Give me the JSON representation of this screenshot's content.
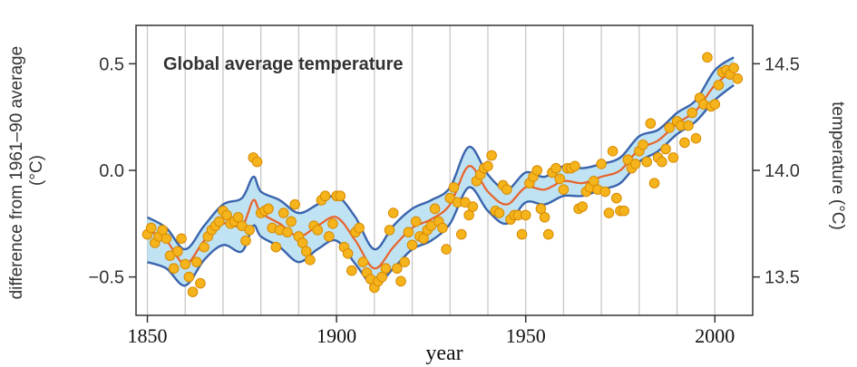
{
  "chart_data": {
    "type": "line",
    "title": "Global average temperature",
    "xlabel": "year",
    "ylabel_left": "difference from 1961–90 average (°C)",
    "ylabel_right": "temperature (°C)",
    "xlim": [
      1847,
      2010
    ],
    "ylim": [
      -0.68,
      0.68
    ],
    "x_ticks": [
      1850,
      1900,
      1950,
      2000
    ],
    "y_ticks_left": [
      -0.5,
      0.0,
      0.5
    ],
    "y_tick_labels_left": [
      "−0.5",
      "0.0",
      "0.5"
    ],
    "y_ticks_right": [
      13.5,
      14.0,
      14.5
    ],
    "y_tick_labels_right": [
      "13.5",
      "14.0",
      "14.5"
    ],
    "right_axis_offset": 14.0,
    "grid": "vertical",
    "colors": {
      "band_fill": "#bfe3f3",
      "band_edge": "#3a64ad",
      "smooth_line": "#e8622a",
      "point_fill": "#f6b41c",
      "point_edge": "#d68a00",
      "grid": "#c8c8c8"
    },
    "series": [
      {
        "x": [
          1850,
          1855,
          1860,
          1865,
          1870,
          1875,
          1878,
          1880,
          1885,
          1890,
          1895,
          1900,
          1905,
          1910,
          1915,
          1920,
          1925,
          1930,
          1935,
          1940,
          1945,
          1950,
          1955,
          1960,
          1965,
          1970,
          1975,
          1980,
          1985,
          1990,
          1995,
          2000,
          2005
        ],
        "values": [
          -0.28,
          -0.33,
          -0.44,
          -0.33,
          -0.25,
          -0.26,
          -0.14,
          -0.2,
          -0.25,
          -0.31,
          -0.26,
          -0.22,
          -0.33,
          -0.46,
          -0.36,
          -0.27,
          -0.23,
          -0.16,
          0.02,
          -0.1,
          -0.16,
          -0.08,
          -0.09,
          -0.05,
          -0.06,
          -0.03,
          0.0,
          0.1,
          0.14,
          0.22,
          0.28,
          0.4,
          0.47
        ]
      },
      {
        "x": [
          1850,
          1855,
          1860,
          1865,
          1870,
          1875,
          1878,
          1880,
          1885,
          1890,
          1895,
          1900,
          1905,
          1910,
          1915,
          1920,
          1925,
          1930,
          1935,
          1940,
          1945,
          1950,
          1955,
          1960,
          1965,
          1970,
          1975,
          1980,
          1985,
          1990,
          1995,
          2000,
          2005
        ],
        "values": [
          -0.22,
          -0.27,
          -0.37,
          -0.26,
          -0.16,
          -0.13,
          -0.03,
          -0.1,
          -0.14,
          -0.2,
          -0.16,
          -0.12,
          -0.22,
          -0.37,
          -0.26,
          -0.18,
          -0.14,
          -0.08,
          0.11,
          -0.02,
          -0.09,
          -0.01,
          -0.03,
          0.02,
          0.01,
          0.03,
          0.06,
          0.16,
          0.19,
          0.27,
          0.33,
          0.47,
          0.53
        ]
      },
      {
        "x": [
          1850,
          1855,
          1860,
          1865,
          1870,
          1875,
          1878,
          1880,
          1885,
          1890,
          1895,
          1900,
          1905,
          1910,
          1915,
          1920,
          1925,
          1930,
          1935,
          1940,
          1945,
          1950,
          1955,
          1960,
          1965,
          1970,
          1975,
          1980,
          1985,
          1990,
          1995,
          2000,
          2005
        ],
        "values": [
          -0.43,
          -0.46,
          -0.54,
          -0.42,
          -0.35,
          -0.38,
          -0.26,
          -0.31,
          -0.36,
          -0.43,
          -0.37,
          -0.33,
          -0.44,
          -0.54,
          -0.46,
          -0.37,
          -0.33,
          -0.25,
          -0.08,
          -0.19,
          -0.25,
          -0.15,
          -0.16,
          -0.12,
          -0.12,
          -0.09,
          -0.06,
          0.04,
          0.09,
          0.17,
          0.23,
          0.33,
          0.4
        ]
      },
      {
        "x": [
          1850,
          1851,
          1852,
          1853,
          1854,
          1855,
          1856,
          1857,
          1858,
          1859,
          1860,
          1861,
          1862,
          1863,
          1864,
          1865,
          1866,
          1867,
          1868,
          1869,
          1870,
          1871,
          1872,
          1873,
          1874,
          1875,
          1876,
          1877,
          1878,
          1879,
          1880,
          1881,
          1882,
          1883,
          1884,
          1885,
          1886,
          1887,
          1888,
          1889,
          1890,
          1891,
          1892,
          1893,
          1894,
          1895,
          1896,
          1897,
          1898,
          1899,
          1900,
          1901,
          1902,
          1903,
          1904,
          1905,
          1906,
          1907,
          1908,
          1909,
          1910,
          1911,
          1912,
          1913,
          1914,
          1915,
          1916,
          1917,
          1918,
          1919,
          1920,
          1921,
          1922,
          1923,
          1924,
          1925,
          1926,
          1927,
          1928,
          1929,
          1930,
          1931,
          1932,
          1933,
          1934,
          1935,
          1936,
          1937,
          1938,
          1939,
          1940,
          1941,
          1942,
          1943,
          1944,
          1945,
          1946,
          1947,
          1948,
          1949,
          1950,
          1951,
          1952,
          1953,
          1954,
          1955,
          1956,
          1957,
          1958,
          1959,
          1960,
          1961,
          1962,
          1963,
          1964,
          1965,
          1966,
          1967,
          1968,
          1969,
          1970,
          1971,
          1972,
          1973,
          1974,
          1975,
          1976,
          1977,
          1978,
          1979,
          1980,
          1981,
          1982,
          1983,
          1984,
          1985,
          1986,
          1987,
          1988,
          1989,
          1990,
          1991,
          1992,
          1993,
          1994,
          1995,
          1996,
          1997,
          1998,
          1999,
          2000,
          2001,
          2002,
          2003,
          2004,
          2005,
          2006
        ],
        "values": [
          -0.3,
          -0.27,
          -0.34,
          -0.31,
          -0.28,
          -0.32,
          -0.4,
          -0.46,
          -0.38,
          -0.32,
          -0.44,
          -0.5,
          -0.57,
          -0.43,
          -0.53,
          -0.36,
          -0.31,
          -0.28,
          -0.26,
          -0.24,
          -0.19,
          -0.21,
          -0.25,
          -0.24,
          -0.22,
          -0.26,
          -0.33,
          -0.28,
          0.06,
          0.04,
          -0.2,
          -0.19,
          -0.18,
          -0.27,
          -0.36,
          -0.28,
          -0.2,
          -0.29,
          -0.24,
          -0.16,
          -0.31,
          -0.34,
          -0.38,
          -0.42,
          -0.26,
          -0.28,
          -0.14,
          -0.12,
          -0.31,
          -0.25,
          -0.12,
          -0.12,
          -0.36,
          -0.39,
          -0.47,
          -0.29,
          -0.27,
          -0.43,
          -0.48,
          -0.51,
          -0.55,
          -0.52,
          -0.5,
          -0.46,
          -0.28,
          -0.2,
          -0.46,
          -0.52,
          -0.43,
          -0.29,
          -0.35,
          -0.24,
          -0.31,
          -0.32,
          -0.28,
          -0.26,
          -0.18,
          -0.24,
          -0.27,
          -0.37,
          -0.13,
          -0.08,
          -0.15,
          -0.3,
          -0.15,
          -0.21,
          -0.17,
          -0.05,
          -0.02,
          0.01,
          0.02,
          0.07,
          -0.19,
          -0.2,
          -0.07,
          -0.09,
          -0.23,
          -0.21,
          -0.21,
          -0.3,
          -0.21,
          -0.06,
          -0.03,
          0.0,
          -0.18,
          -0.22,
          -0.3,
          -0.01,
          0.01,
          -0.04,
          -0.09,
          0.01,
          0.01,
          0.02,
          -0.18,
          -0.17,
          -0.1,
          -0.08,
          -0.05,
          -0.09,
          0.03,
          -0.1,
          -0.2,
          0.09,
          -0.13,
          -0.19,
          -0.19,
          0.05,
          0.01,
          0.03,
          0.09,
          0.12,
          0.04,
          0.22,
          -0.06,
          0.06,
          0.04,
          0.1,
          0.2,
          0.06,
          0.23,
          0.21,
          0.13,
          0.21,
          0.27,
          0.15,
          0.34,
          0.31,
          0.53,
          0.3,
          0.31,
          0.4,
          0.46,
          0.47,
          0.45,
          0.48,
          0.43
        ]
      }
    ]
  }
}
